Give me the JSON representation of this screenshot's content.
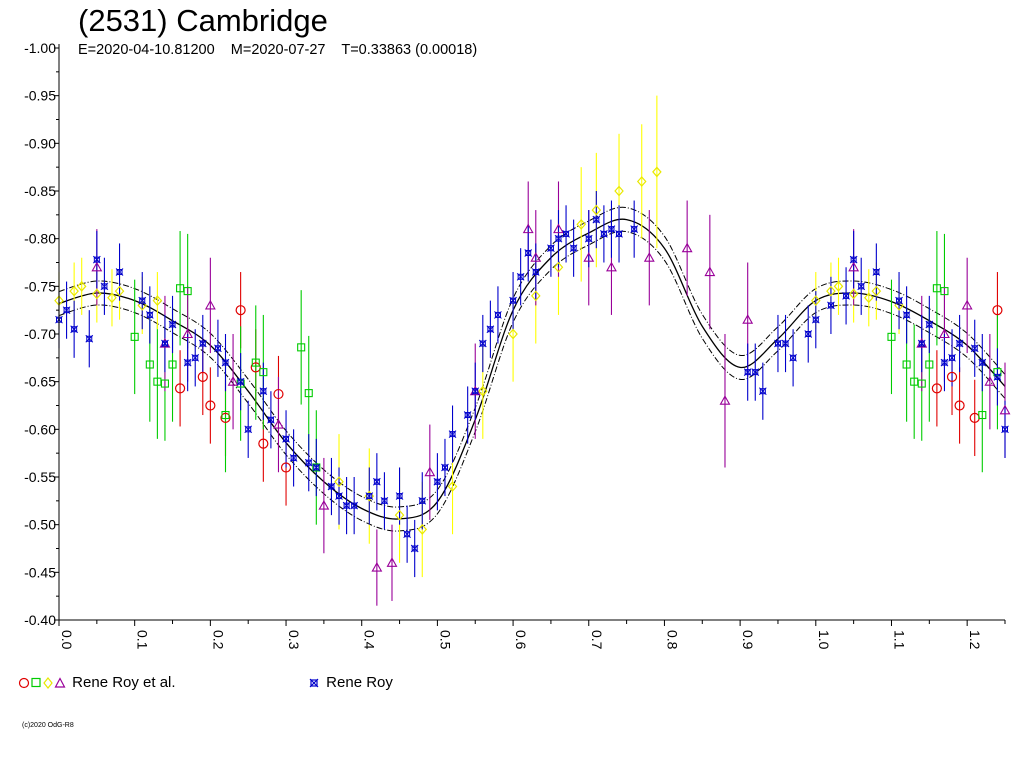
{
  "chart_data": {
    "type": "scatter",
    "title": "(2531) Cambridge",
    "subtitle": "E=2020-04-10.81200    M=2020-07-27    T=0.33863 (0.00018)",
    "xlim": [
      0.0,
      1.25
    ],
    "ylim": [
      -1.0,
      -0.4
    ],
    "y_ticks": [
      "-1.00",
      "-0.95",
      "-0.90",
      "-0.85",
      "-0.80",
      "-0.75",
      "-0.70",
      "-0.65",
      "-0.60",
      "-0.55",
      "-0.50",
      "-0.45",
      "-0.40"
    ],
    "x_ticks": [
      "0.0",
      "0.1",
      "0.2",
      "0.3",
      "0.4",
      "0.5",
      "0.6",
      "0.7",
      "0.8",
      "0.9",
      "1.0",
      "1.1",
      "1.2"
    ],
    "y_inverted": true,
    "grid": false,
    "legend_placement": "bottom",
    "colors": {
      "red": "#e00000",
      "green": "#00cc00",
      "yellow": "#ffff00",
      "purple": "#990099",
      "blue": "#0000cc",
      "fit": "#000000"
    },
    "legend": [
      {
        "label": "Rene Roy et al.",
        "symbols": [
          "circle-red",
          "square-green",
          "diamond-yellow",
          "triangle-purple"
        ]
      },
      {
        "label": "Rene Roy",
        "symbols": [
          "star-blue"
        ]
      }
    ],
    "fit_curve": {
      "phase": [
        0.0,
        0.05,
        0.1,
        0.15,
        0.2,
        0.25,
        0.3,
        0.35,
        0.4,
        0.45,
        0.5,
        0.55,
        0.6,
        0.65,
        0.7,
        0.75,
        0.8,
        0.85,
        0.9,
        0.95,
        1.0,
        1.05,
        1.1,
        1.15,
        1.2,
        1.25
      ],
      "mag": [
        -0.732,
        -0.743,
        -0.735,
        -0.714,
        -0.688,
        -0.64,
        -0.586,
        -0.545,
        -0.517,
        -0.506,
        -0.524,
        -0.61,
        -0.725,
        -0.78,
        -0.806,
        -0.82,
        -0.79,
        -0.708,
        -0.665,
        -0.695,
        -0.735,
        -0.743,
        -0.734,
        -0.714,
        -0.688,
        -0.645
      ]
    },
    "series": [
      {
        "name": "Rene Roy et al.",
        "marker": "circle-red",
        "x": [
          0.16,
          0.19,
          0.2,
          0.22,
          0.24,
          0.26,
          0.27,
          0.29,
          0.3,
          1.16,
          1.18,
          1.19,
          1.21,
          1.24
        ],
        "y": [
          -0.643,
          -0.655,
          -0.625,
          -0.612,
          -0.725,
          -0.665,
          -0.585,
          -0.637,
          -0.56,
          -0.643,
          -0.655,
          -0.625,
          -0.612,
          -0.725
        ],
        "err": [
          0.04,
          0.04,
          0.04,
          0.04,
          0.04,
          0.04,
          0.04,
          0.04,
          0.04,
          0.04,
          0.04,
          0.04,
          0.04,
          0.04
        ]
      },
      {
        "name": "Rene Roy et al.",
        "marker": "square-green",
        "x": [
          0.1,
          0.12,
          0.13,
          0.14,
          0.15,
          0.16,
          0.17,
          0.22,
          0.24,
          0.26,
          0.27,
          0.32,
          0.33,
          0.34,
          1.1,
          1.12,
          1.13,
          1.14,
          1.15,
          1.16,
          1.17,
          1.22,
          1.24
        ],
        "y": [
          -0.697,
          -0.668,
          -0.65,
          -0.648,
          -0.668,
          -0.748,
          -0.745,
          -0.615,
          -0.648,
          -0.67,
          -0.66,
          -0.686,
          -0.638,
          -0.56,
          -0.697,
          -0.668,
          -0.65,
          -0.648,
          -0.668,
          -0.748,
          -0.745,
          -0.615,
          -0.66
        ],
        "err": [
          0.06,
          0.06,
          0.06,
          0.06,
          0.06,
          0.06,
          0.06,
          0.06,
          0.06,
          0.06,
          0.06,
          0.06,
          0.06,
          0.06,
          0.06,
          0.06,
          0.06,
          0.06,
          0.06,
          0.06,
          0.06,
          0.06,
          0.06
        ]
      },
      {
        "name": "Rene Roy et al.",
        "marker": "diamond-yellow",
        "x": [
          0.0,
          0.02,
          0.03,
          0.05,
          0.07,
          0.08,
          0.11,
          0.13,
          0.37,
          0.41,
          0.45,
          0.48,
          0.52,
          0.56,
          0.6,
          0.63,
          0.66,
          0.69,
          0.71,
          0.74,
          0.77,
          0.79,
          1.0,
          1.02,
          1.03,
          1.05,
          1.07,
          1.08,
          1.11
        ],
        "y": [
          -0.735,
          -0.745,
          -0.75,
          -0.742,
          -0.738,
          -0.745,
          -0.73,
          -0.735,
          -0.545,
          -0.53,
          -0.51,
          -0.495,
          -0.54,
          -0.64,
          -0.7,
          -0.74,
          -0.77,
          -0.815,
          -0.83,
          -0.85,
          -0.86,
          -0.87,
          -0.735,
          -0.745,
          -0.75,
          -0.742,
          -0.738,
          -0.745,
          -0.73
        ],
        "err": [
          0.03,
          0.03,
          0.03,
          0.03,
          0.03,
          0.03,
          0.03,
          0.03,
          0.05,
          0.05,
          0.05,
          0.05,
          0.05,
          0.05,
          0.05,
          0.05,
          0.05,
          0.06,
          0.06,
          0.06,
          0.06,
          0.08,
          0.03,
          0.03,
          0.03,
          0.03,
          0.03,
          0.03,
          0.03
        ]
      },
      {
        "name": "Rene Roy et al.",
        "marker": "triangle-purple",
        "x": [
          0.05,
          0.14,
          0.17,
          0.2,
          0.23,
          0.29,
          0.35,
          0.42,
          0.44,
          0.49,
          0.55,
          0.62,
          0.63,
          0.66,
          0.7,
          0.73,
          0.78,
          0.83,
          0.86,
          0.88,
          0.91,
          1.05,
          1.14,
          1.17,
          1.2,
          1.23,
          1.25
        ],
        "y": [
          -0.77,
          -0.69,
          -0.7,
          -0.73,
          -0.65,
          -0.605,
          -0.52,
          -0.455,
          -0.46,
          -0.555,
          -0.64,
          -0.81,
          -0.78,
          -0.81,
          -0.78,
          -0.77,
          -0.78,
          -0.79,
          -0.765,
          -0.63,
          -0.715,
          -0.77,
          -0.69,
          -0.7,
          -0.73,
          -0.65,
          -0.62
        ],
        "err": [
          0.04,
          0.05,
          0.05,
          0.05,
          0.05,
          0.05,
          0.05,
          0.04,
          0.04,
          0.05,
          0.05,
          0.05,
          0.05,
          0.05,
          0.05,
          0.05,
          0.05,
          0.05,
          0.06,
          0.07,
          0.06,
          0.04,
          0.05,
          0.05,
          0.05,
          0.05,
          0.05
        ]
      },
      {
        "name": "Rene Roy",
        "marker": "star-blue",
        "x": [
          0.0,
          0.01,
          0.02,
          0.04,
          0.05,
          0.06,
          0.08,
          0.11,
          0.12,
          0.14,
          0.15,
          0.17,
          0.18,
          0.19,
          0.21,
          0.22,
          0.24,
          0.25,
          0.27,
          0.28,
          0.3,
          0.31,
          0.33,
          0.34,
          0.36,
          0.37,
          0.38,
          0.39,
          0.41,
          0.42,
          0.43,
          0.45,
          0.46,
          0.47,
          0.48,
          0.5,
          0.51,
          0.52,
          0.54,
          0.55,
          0.56,
          0.57,
          0.58,
          0.6,
          0.61,
          0.62,
          0.63,
          0.65,
          0.66,
          0.67,
          0.68,
          0.7,
          0.71,
          0.72,
          0.73,
          0.74,
          0.76,
          0.91,
          0.92,
          0.93,
          0.95,
          0.96,
          0.97,
          0.99,
          1.0,
          1.02,
          1.04,
          1.05,
          1.06,
          1.08,
          1.11,
          1.12,
          1.14,
          1.15,
          1.17,
          1.18,
          1.19,
          1.21,
          1.22,
          1.24,
          1.25
        ],
        "y": [
          -0.715,
          -0.725,
          -0.705,
          -0.695,
          -0.778,
          -0.75,
          -0.765,
          -0.735,
          -0.72,
          -0.69,
          -0.71,
          -0.67,
          -0.675,
          -0.69,
          -0.685,
          -0.67,
          -0.65,
          -0.6,
          -0.64,
          -0.61,
          -0.59,
          -0.57,
          -0.565,
          -0.56,
          -0.54,
          -0.53,
          -0.52,
          -0.52,
          -0.53,
          -0.545,
          -0.525,
          -0.53,
          -0.49,
          -0.475,
          -0.525,
          -0.545,
          -0.56,
          -0.595,
          -0.615,
          -0.64,
          -0.69,
          -0.705,
          -0.72,
          -0.735,
          -0.76,
          -0.785,
          -0.765,
          -0.79,
          -0.8,
          -0.805,
          -0.79,
          -0.8,
          -0.82,
          -0.805,
          -0.81,
          -0.805,
          -0.81,
          -0.66,
          -0.66,
          -0.64,
          -0.69,
          -0.69,
          -0.675,
          -0.7,
          -0.715,
          -0.73,
          -0.74,
          -0.778,
          -0.75,
          -0.765,
          -0.735,
          -0.72,
          -0.69,
          -0.71,
          -0.67,
          -0.675,
          -0.69,
          -0.685,
          -0.67,
          -0.655,
          -0.6
        ],
        "err": [
          0.03,
          0.03,
          0.03,
          0.03,
          0.03,
          0.03,
          0.03,
          0.03,
          0.03,
          0.03,
          0.03,
          0.03,
          0.03,
          0.03,
          0.03,
          0.03,
          0.03,
          0.03,
          0.03,
          0.03,
          0.03,
          0.03,
          0.03,
          0.03,
          0.03,
          0.03,
          0.03,
          0.03,
          0.03,
          0.03,
          0.03,
          0.03,
          0.03,
          0.03,
          0.03,
          0.03,
          0.03,
          0.03,
          0.03,
          0.03,
          0.03,
          0.03,
          0.03,
          0.03,
          0.03,
          0.03,
          0.03,
          0.03,
          0.03,
          0.03,
          0.03,
          0.03,
          0.03,
          0.03,
          0.03,
          0.03,
          0.03,
          0.03,
          0.03,
          0.03,
          0.03,
          0.03,
          0.03,
          0.03,
          0.03,
          0.03,
          0.03,
          0.03,
          0.03,
          0.03,
          0.03,
          0.03,
          0.03,
          0.03,
          0.03,
          0.03,
          0.03,
          0.03,
          0.03,
          0.03,
          0.03
        ]
      }
    ]
  },
  "footer": {
    "copyright": "(c)2020 OdG-R8"
  }
}
